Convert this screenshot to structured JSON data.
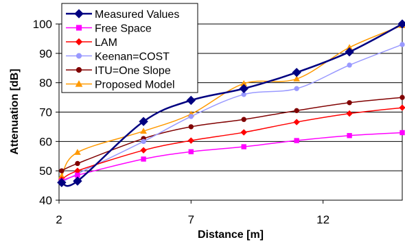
{
  "chart_data": {
    "type": "line",
    "xlabel": "Distance [m]",
    "ylabel": "Attenuation [dB]",
    "xlim": [
      2,
      15
    ],
    "ylim": [
      40,
      100
    ],
    "x_ticks": [
      2,
      7,
      12
    ],
    "y_ticks": [
      40,
      50,
      60,
      70,
      80,
      90,
      100
    ],
    "grid": "horizontal",
    "legend_position": "top-left",
    "smoothed": true,
    "series": [
      {
        "name": "Measured Values",
        "color": "#000080",
        "marker": "diamond",
        "x": [
          2.1,
          2.7,
          5.2,
          7,
          9,
          11,
          13,
          15
        ],
        "y": [
          46,
          46.5,
          66.8,
          74,
          78,
          83.5,
          90.5,
          100
        ]
      },
      {
        "name": "Free Space",
        "color": "#ff00ff",
        "marker": "square",
        "x": [
          2.1,
          2.7,
          5.2,
          7,
          9,
          11,
          13,
          15
        ],
        "y": [
          46.5,
          48.5,
          54,
          56.5,
          58.2,
          60.3,
          62,
          63
        ]
      },
      {
        "name": "LAM",
        "color": "#ff0000",
        "marker": "diamond",
        "x": [
          2.1,
          2.7,
          5.2,
          7,
          9,
          11,
          13,
          15
        ],
        "y": [
          47,
          50,
          57,
          60.3,
          63.1,
          66.6,
          69.5,
          71.5
        ]
      },
      {
        "name": "Keenan=COST",
        "color": "#9999ff",
        "marker": "circle",
        "x": [
          2.1,
          2.7,
          5.2,
          7,
          9,
          11,
          13,
          15
        ],
        "y": [
          46,
          49,
          60,
          68.5,
          76,
          78,
          86,
          93
        ]
      },
      {
        "name": "ITU=One Slope",
        "color": "#800000",
        "marker": "circle",
        "x": [
          2.1,
          2.7,
          5.2,
          7,
          9,
          11,
          13,
          15
        ],
        "y": [
          50,
          52.5,
          61,
          65,
          67.5,
          70.5,
          73.2,
          75
        ]
      },
      {
        "name": "Proposed Model",
        "color": "#ff9900",
        "marker": "triangle",
        "x": [
          2.1,
          2.7,
          5.2,
          7,
          9,
          11,
          13,
          15
        ],
        "y": [
          48.2,
          56.3,
          63.5,
          69.3,
          79.7,
          81.3,
          92,
          99.5
        ]
      }
    ]
  }
}
